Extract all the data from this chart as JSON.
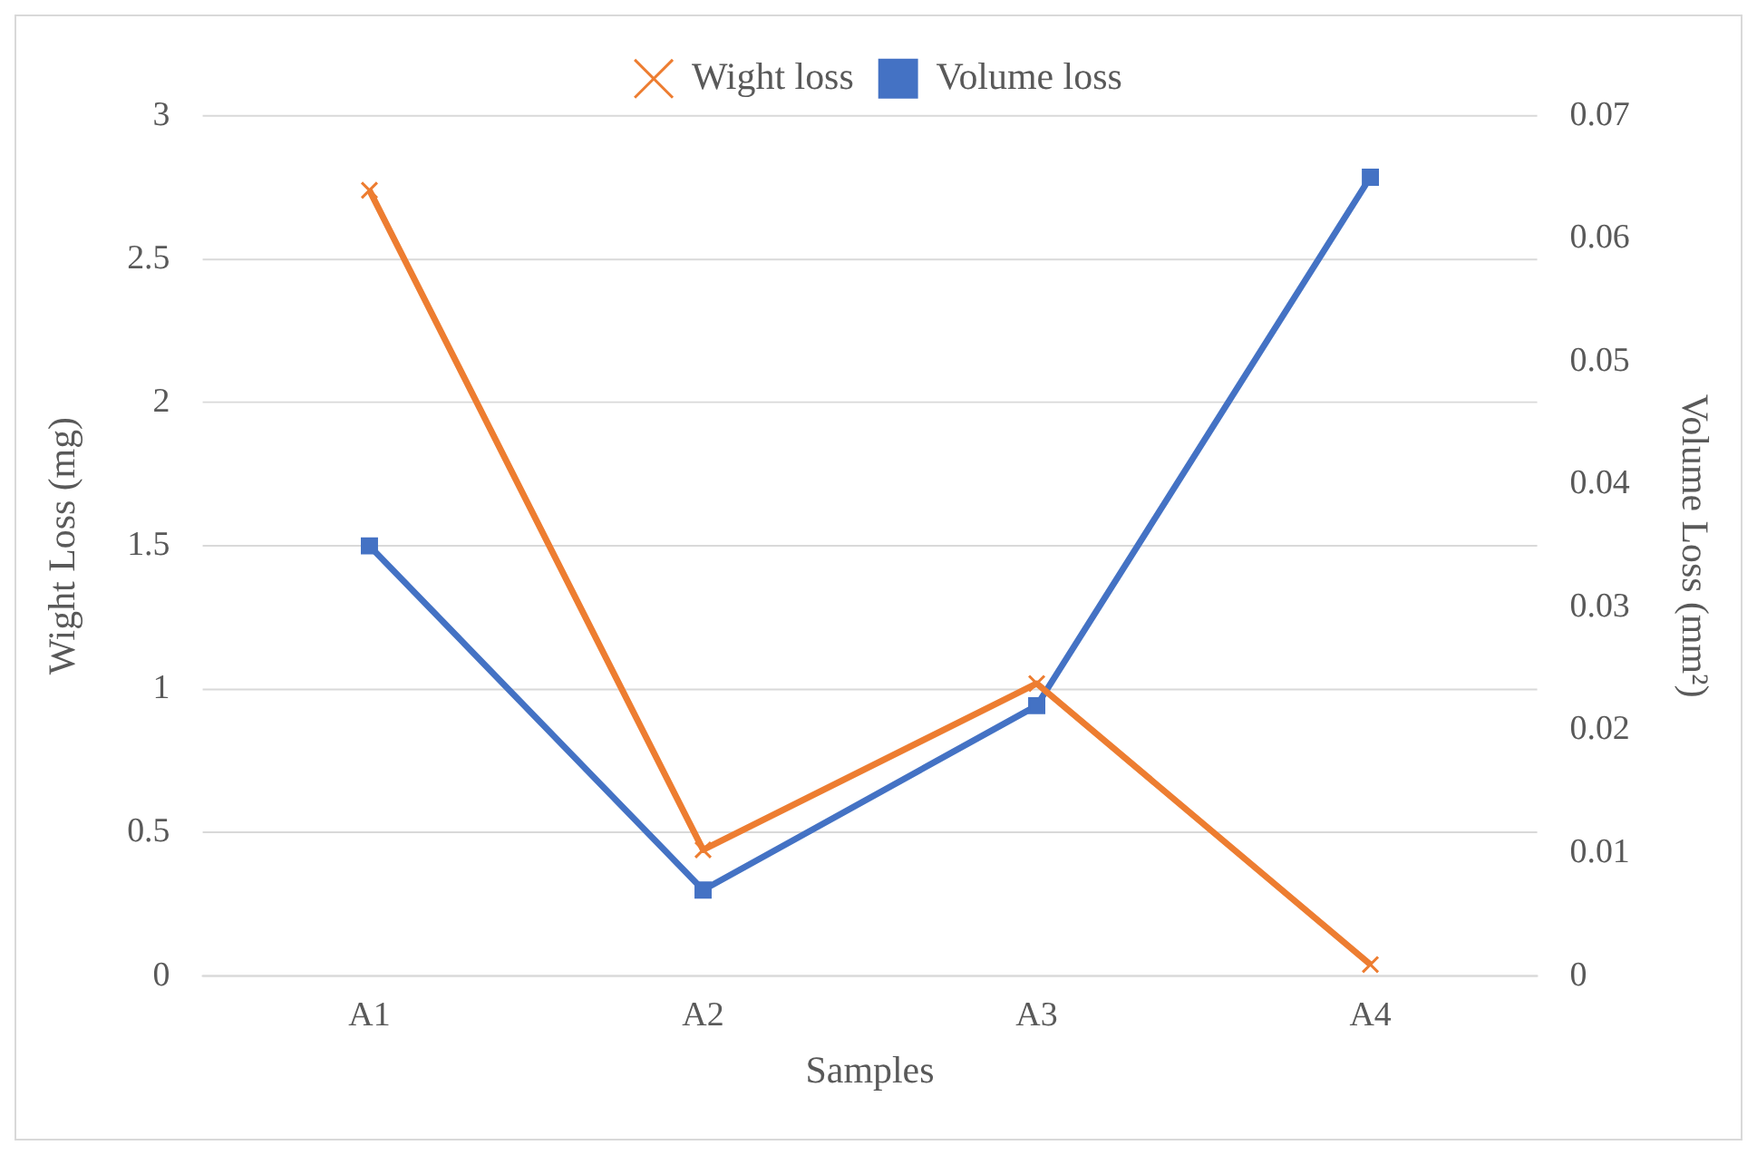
{
  "chart_data": {
    "type": "line",
    "categories": [
      "A1",
      "A2",
      "A3",
      "A4"
    ],
    "xlabel": "Samples",
    "ylabel": "Wight Loss (mg)",
    "y2label": "Volume Loss (mm²)",
    "series": [
      {
        "name": "Wight loss",
        "color": "#ed7d31",
        "values": [
          2.74,
          0.44,
          1.02,
          0.04
        ],
        "marker": "cross"
      },
      {
        "name": "Volume loss",
        "color": "#4472c4",
        "values": [
          0.035,
          0.007,
          0.022,
          0.065
        ],
        "marker": "square",
        "axis": "y2"
      }
    ],
    "ylim": [
      0,
      3
    ],
    "yticks": [
      0,
      0.5,
      1,
      1.5,
      2,
      2.5,
      3
    ],
    "y2lim": [
      0,
      0.07
    ],
    "y2ticks": [
      0,
      0.01,
      0.02,
      0.03,
      0.04,
      0.05,
      0.06,
      0.07
    ],
    "grid": true,
    "legend": "top"
  }
}
